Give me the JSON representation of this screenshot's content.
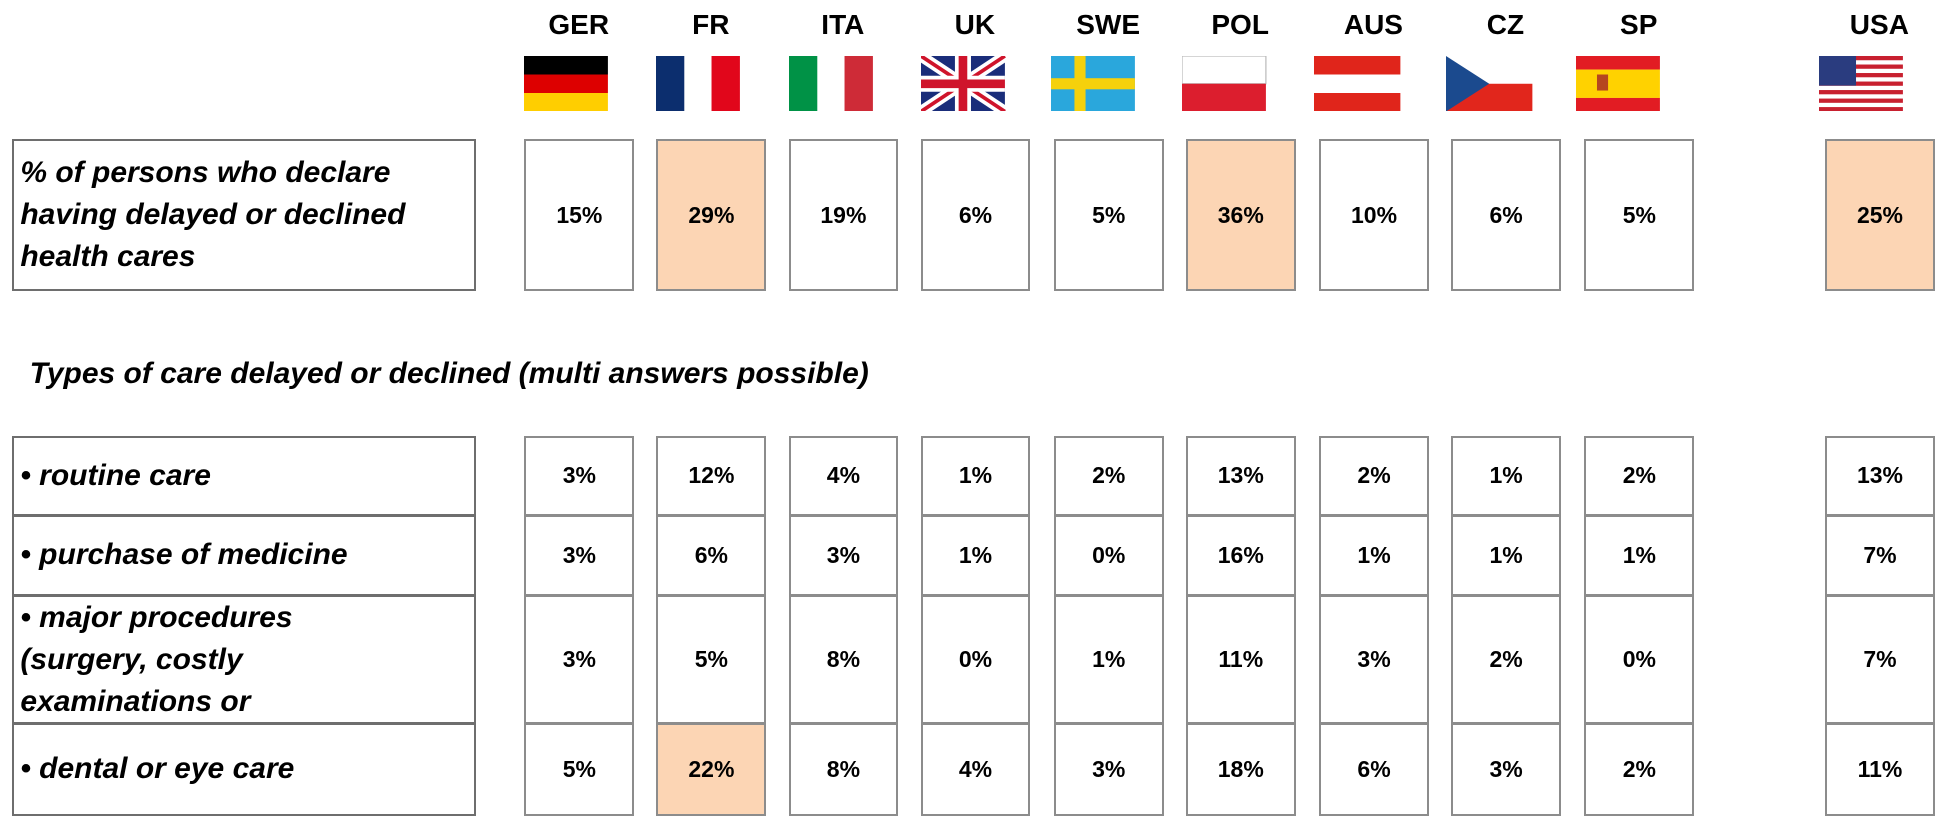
{
  "header": {
    "countries": [
      "GER",
      "FR",
      "ITA",
      "UK",
      "SWE",
      "POL",
      "AUS",
      "CZ",
      "SP",
      "USA"
    ]
  },
  "highlight_color": "#fcd5b4",
  "summary_row": {
    "label": [
      "% of persons who declare",
      "having delayed or declined",
      "health cares"
    ],
    "cells": [
      {
        "text": "15%"
      },
      {
        "text": "29%",
        "highlight": true
      },
      {
        "text": "19%"
      },
      {
        "text": "6%"
      },
      {
        "text": "5%"
      },
      {
        "text": "36%",
        "highlight": true
      },
      {
        "text": "10%"
      },
      {
        "text": "6%"
      },
      {
        "text": "5%"
      },
      {
        "text": "25%",
        "highlight": true
      }
    ]
  },
  "section_title": "Types of care delayed or declined (multi answers possible)",
  "detail_rows": [
    {
      "label": [
        "• routine care"
      ],
      "cells": [
        {
          "text": "3%"
        },
        {
          "text": "12%"
        },
        {
          "text": "4%"
        },
        {
          "text": "1%"
        },
        {
          "text": "2%"
        },
        {
          "text": "13%"
        },
        {
          "text": "2%"
        },
        {
          "text": "1%"
        },
        {
          "text": "2%"
        },
        {
          "text": "13%"
        }
      ]
    },
    {
      "label": [
        "• purchase of medicine"
      ],
      "cells": [
        {
          "text": "3%"
        },
        {
          "text": "6%"
        },
        {
          "text": "3%"
        },
        {
          "text": "1%"
        },
        {
          "text": "0%"
        },
        {
          "text": "16%"
        },
        {
          "text": "1%"
        },
        {
          "text": "1%"
        },
        {
          "text": "1%"
        },
        {
          "text": "7%"
        }
      ]
    },
    {
      "label": [
        "• major procedures",
        "(surgery, costly",
        "examinations or"
      ],
      "cells": [
        {
          "text": "3%"
        },
        {
          "text": "5%"
        },
        {
          "text": "8%"
        },
        {
          "text": "0%"
        },
        {
          "text": "1%"
        },
        {
          "text": "11%"
        },
        {
          "text": "3%"
        },
        {
          "text": "2%"
        },
        {
          "text": "0%"
        },
        {
          "text": "7%"
        }
      ]
    },
    {
      "label": [
        "• dental or eye care"
      ],
      "cells": [
        {
          "text": "5%"
        },
        {
          "text": "22%",
          "highlight": true
        },
        {
          "text": "8%"
        },
        {
          "text": "4%"
        },
        {
          "text": "3%"
        },
        {
          "text": "18%"
        },
        {
          "text": "6%"
        },
        {
          "text": "3%"
        },
        {
          "text": "2%"
        },
        {
          "text": "11%"
        }
      ]
    }
  ]
}
